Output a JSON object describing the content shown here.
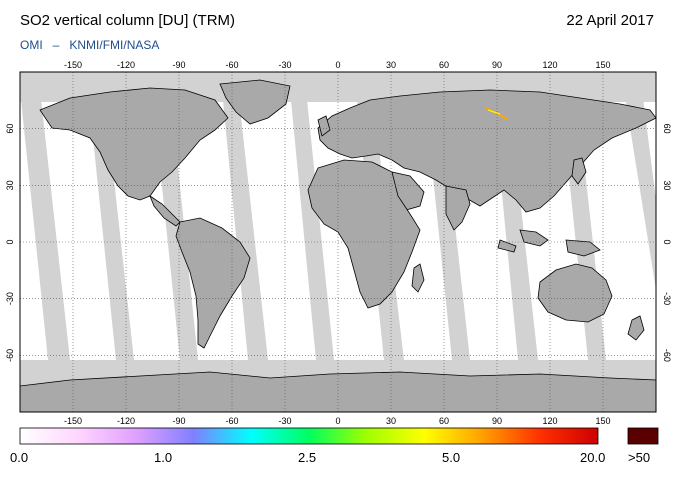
{
  "header": {
    "title": "SO2 vertical column [DU] (TRM)",
    "date": "22 April 2017",
    "source_instrument": "OMI",
    "source_separator": "–",
    "source_org": "KNMI/FMI/NASA"
  },
  "map": {
    "projection": "plate-carree",
    "lon_range": [
      -180,
      180
    ],
    "lat_range": [
      -90,
      90
    ],
    "lon_ticks": [
      "-150",
      "-120",
      "-90",
      "-60",
      "-30",
      "0",
      "30",
      "60",
      "90",
      "120",
      "150"
    ],
    "lat_ticks": [
      "60",
      "30",
      "0",
      "-30",
      "-60"
    ],
    "grid": true,
    "colors": {
      "ocean_swath": "#ffffff",
      "land_gap": "#a9a9a9",
      "swath_gap": "#d2d2d2",
      "coastline": "#000000",
      "so2_hotspot": "#ffa500"
    }
  },
  "colorbar": {
    "labels": [
      "0.0",
      "1.0",
      "2.5",
      "5.0",
      "20.0"
    ],
    "overflow_label": ">50",
    "overflow_color": "#5a0000",
    "gradient": [
      "#ffffff",
      "#ffd6ff",
      "#e0a0ff",
      "#8080ff",
      "#00ffff",
      "#00ff60",
      "#a0ff00",
      "#ffff00",
      "#ffa000",
      "#ff3000",
      "#cc0000"
    ]
  }
}
